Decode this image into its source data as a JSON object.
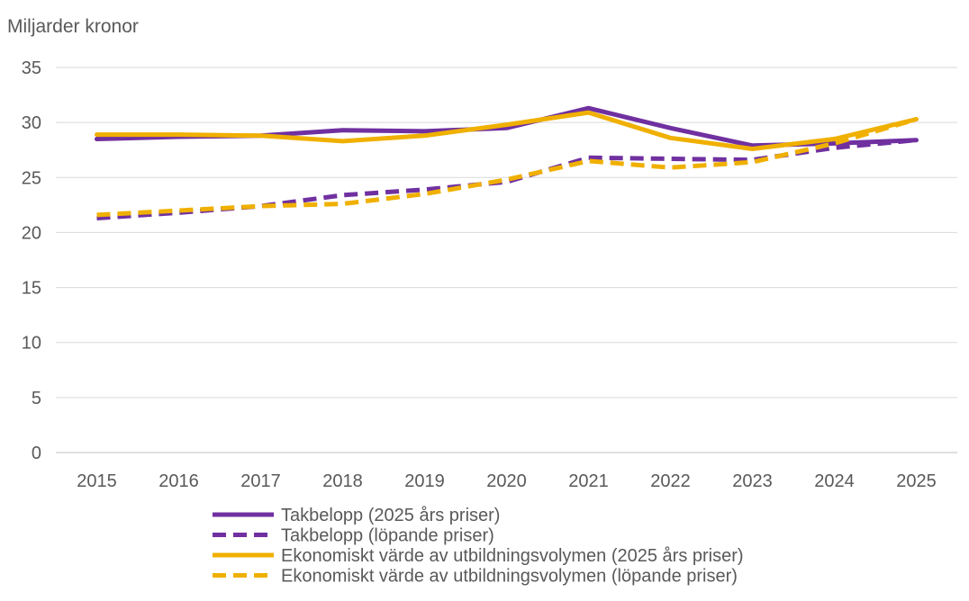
{
  "chart_data": {
    "type": "line",
    "title": "",
    "ylabel": "Miljarder kronor",
    "xlabel": "",
    "categories": [
      "2015",
      "2016",
      "2017",
      "2018",
      "2019",
      "2020",
      "2021",
      "2022",
      "2023",
      "2024",
      "2025"
    ],
    "ylim": [
      0,
      35
    ],
    "yticks": [
      0,
      5,
      10,
      15,
      20,
      25,
      30,
      35
    ],
    "grid": true,
    "legend_position": "bottom",
    "series": [
      {
        "name": "Takbelopp (2025 års priser)",
        "color": "#7030a0",
        "style": "solid",
        "values": [
          28.5,
          28.7,
          28.8,
          29.3,
          29.2,
          29.5,
          31.3,
          29.5,
          27.9,
          28.1,
          28.4
        ]
      },
      {
        "name": "Takbelopp (löpande priser)",
        "color": "#7030a0",
        "style": "dashed",
        "values": [
          21.3,
          21.8,
          22.4,
          23.4,
          23.9,
          24.6,
          26.8,
          26.7,
          26.6,
          27.7,
          28.4
        ]
      },
      {
        "name": "Ekonomiskt värde av utbildningsvolymen (2025 års priser)",
        "color": "#f0b000",
        "style": "solid",
        "values": [
          28.9,
          28.9,
          28.8,
          28.3,
          28.8,
          29.8,
          30.9,
          28.6,
          27.6,
          28.5,
          30.3
        ]
      },
      {
        "name": "Ekonomiskt värde av utbildningsvolymen (löpande priser)",
        "color": "#f0b000",
        "style": "dashed",
        "values": [
          21.6,
          22.0,
          22.4,
          22.6,
          23.5,
          24.8,
          26.5,
          25.9,
          26.4,
          28.1,
          30.3
        ]
      }
    ]
  }
}
